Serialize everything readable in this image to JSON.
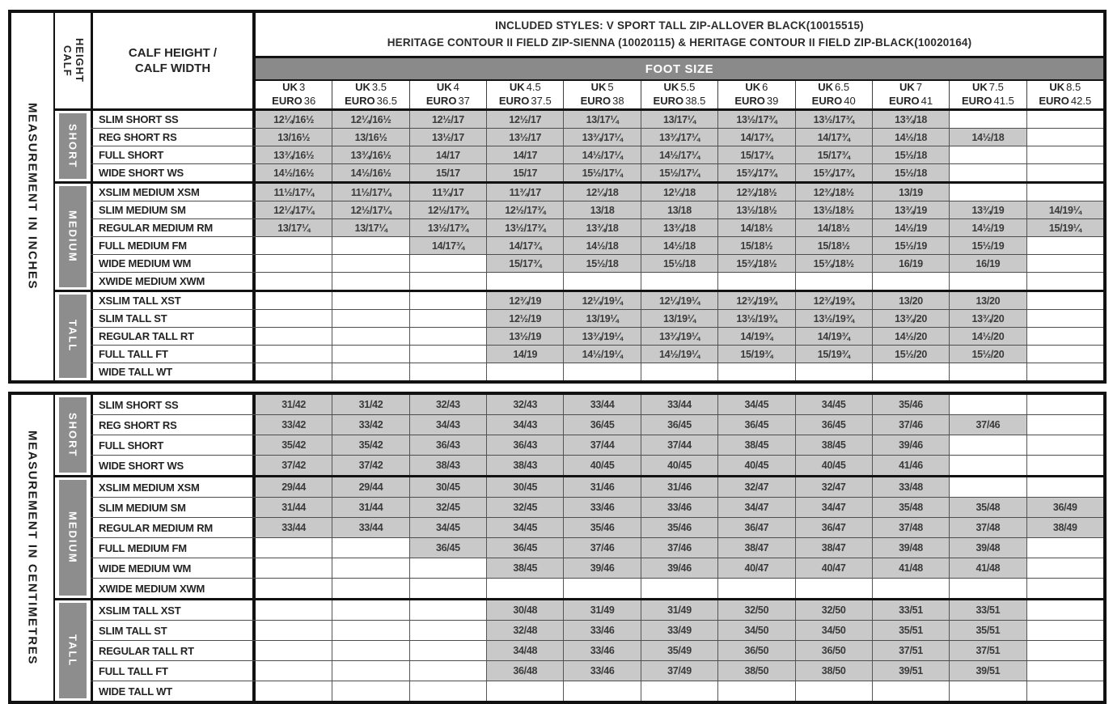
{
  "header": {
    "included_styles_line1": "INCLUDED STYLES: V SPORT TALL ZIP-ALLOVER BLACK(10015515)",
    "included_styles_line2": "HERITAGE CONTOUR II FIELD ZIP-SIENNA (10020115) & HERITAGE CONTOUR II FIELD ZIP-BLACK(10020164)",
    "foot_size_label": "FOOT SIZE",
    "calf_height_vertical_label": "CALF HEIGHT",
    "calf_header_label": "CALF HEIGHT / CALF WIDTH",
    "size_columns": [
      {
        "uk_label": "UK",
        "uk_value": "3",
        "euro_label": "EURO",
        "euro_value": "36"
      },
      {
        "uk_label": "UK",
        "uk_value": "3.5",
        "euro_label": "EURO",
        "euro_value": "36.5"
      },
      {
        "uk_label": "UK",
        "uk_value": "4",
        "euro_label": "EURO",
        "euro_value": "37"
      },
      {
        "uk_label": "UK",
        "uk_value": "4.5",
        "euro_label": "EURO",
        "euro_value": "37.5"
      },
      {
        "uk_label": "UK",
        "uk_value": "5",
        "euro_label": "EURO",
        "euro_value": "38"
      },
      {
        "uk_label": "UK",
        "uk_value": "5.5",
        "euro_label": "EURO",
        "euro_value": "38.5"
      },
      {
        "uk_label": "UK",
        "uk_value": "6",
        "euro_label": "EURO",
        "euro_value": "39"
      },
      {
        "uk_label": "UK",
        "uk_value": "6.5",
        "euro_label": "EURO",
        "euro_value": "40"
      },
      {
        "uk_label": "UK",
        "uk_value": "7",
        "euro_label": "EURO",
        "euro_value": "41"
      },
      {
        "uk_label": "UK",
        "uk_value": "7.5",
        "euro_label": "EURO",
        "euro_value": "41.5"
      },
      {
        "uk_label": "UK",
        "uk_value": "8.5",
        "euro_label": "EURO",
        "euro_value": "42.5"
      }
    ]
  },
  "colors": {
    "foot_size_bar": "#8a8a8a",
    "group_label_box": "#8d8d8d",
    "filled_cell": "#c9c9c9",
    "border": "#121212",
    "text": "#3a3a3a"
  },
  "tables": [
    {
      "id": "inches",
      "side_label": "MEASUREMENT IN INCHES",
      "groups": [
        {
          "label": "SHORT",
          "rows": [
            {
              "label": "SLIM SHORT SS",
              "cells": [
                "12¼/16½",
                "12¼/16½",
                "12½/17",
                "12½/17",
                "13/17¼",
                "13/17¼",
                "13½/17¾",
                "13½/17¾",
                "13¾/18",
                "",
                ""
              ]
            },
            {
              "label": "REG SHORT RS",
              "cells": [
                "13/16½",
                "13/16½",
                "13½/17",
                "13½/17",
                "13¾/17¼",
                "13¾/17¼",
                "14/17¾",
                "14/17¾",
                "14½/18",
                "14½/18",
                ""
              ]
            },
            {
              "label": "FULL SHORT",
              "cells": [
                "13¾/16½",
                "13¾/16½",
                "14/17",
                "14/17",
                "14½/17¼",
                "14½/17¼",
                "15/17¾",
                "15/17¾",
                "15½/18",
                "",
                ""
              ]
            },
            {
              "label": "WIDE SHORT WS",
              "cells": [
                "14½/16½",
                "14½/16½",
                "15/17",
                "15/17",
                "15½/17¼",
                "15½/17¼",
                "15¾/17¾",
                "15¾/17¾",
                "15½/18",
                "",
                ""
              ]
            }
          ]
        },
        {
          "label": "MEDIUM",
          "rows": [
            {
              "label": "XSLIM MEDIUM XSM",
              "cells": [
                "11½/17¼",
                "11½/17¼",
                "11¾/17",
                "11¾/17",
                "12¼/18",
                "12¼/18",
                "12¾/18½",
                "12¾/18½",
                "13/19",
                "",
                ""
              ]
            },
            {
              "label": "SLIM MEDIUM SM",
              "cells": [
                "12¼/17¼",
                "12½/17¼",
                "12½/17¾",
                "12½/17¾",
                "13/18",
                "13/18",
                "13½/18½",
                "13½/18½",
                "13¾/19",
                "13¾/19",
                "14/19¼"
              ]
            },
            {
              "label": "REGULAR MEDIUM RM",
              "cells": [
                "13/17¼",
                "13/17¼",
                "13½/17¾",
                "13½/17¾",
                "13¾/18",
                "13¾/18",
                "14/18½",
                "14/18½",
                "14½/19",
                "14½/19",
                "15/19¼"
              ]
            },
            {
              "label": "FULL MEDIUM FM",
              "cells": [
                "",
                "",
                "14/17¾",
                "14/17¾",
                "14½/18",
                "14½/18",
                "15/18½",
                "15/18½",
                "15½/19",
                "15½/19",
                ""
              ]
            },
            {
              "label": "WIDE MEDIUM WM",
              "cells": [
                "",
                "",
                "",
                "15/17¾",
                "15½/18",
                "15½/18",
                "15¾/18½",
                "15¾/18½",
                "16/19",
                "16/19",
                ""
              ]
            },
            {
              "label": "XWIDE MEDIUM XWM",
              "cells": [
                "",
                "",
                "",
                "",
                "",
                "",
                "",
                "",
                "",
                "",
                ""
              ]
            }
          ]
        },
        {
          "label": "TALL",
          "rows": [
            {
              "label": "XSLIM TALL XST",
              "cells": [
                "",
                "",
                "",
                "12¾/19",
                "12¼/19¼",
                "12¼/19¼",
                "12¾/19¾",
                "12¾/19¾",
                "13/20",
                "13/20",
                ""
              ]
            },
            {
              "label": "SLIM TALL ST",
              "cells": [
                "",
                "",
                "",
                "12½/19",
                "13/19¼",
                "13/19¼",
                "13½/19¾",
                "13½/19¾",
                "13¾/20",
                "13¾/20",
                ""
              ]
            },
            {
              "label": "REGULAR TALL RT",
              "cells": [
                "",
                "",
                "",
                "13½/19",
                "13¾/19¼",
                "13¾/19¼",
                "14/19¾",
                "14/19¾",
                "14½/20",
                "14½/20",
                ""
              ]
            },
            {
              "label": "FULL TALL FT",
              "cells": [
                "",
                "",
                "",
                "14/19",
                "14½/19¼",
                "14½/19¼",
                "15/19¾",
                "15/19¾",
                "15½/20",
                "15½/20",
                ""
              ]
            },
            {
              "label": "WIDE TALL WT",
              "cells": [
                "",
                "",
                "",
                "",
                "",
                "",
                "",
                "",
                "",
                "",
                ""
              ]
            }
          ]
        }
      ]
    },
    {
      "id": "centimetres",
      "side_label": "MEASUREMENT IN CENTIMETRES",
      "groups": [
        {
          "label": "SHORT",
          "rows": [
            {
              "label": "SLIM SHORT SS",
              "cells": [
                "31/42",
                "31/42",
                "32/43",
                "32/43",
                "33/44",
                "33/44",
                "34/45",
                "34/45",
                "35/46",
                "",
                ""
              ]
            },
            {
              "label": "REG SHORT RS",
              "cells": [
                "33/42",
                "33/42",
                "34/43",
                "34/43",
                "36/45",
                "36/45",
                "36/45",
                "36/45",
                "37/46",
                "37/46",
                ""
              ]
            },
            {
              "label": "FULL SHORT",
              "cells": [
                "35/42",
                "35/42",
                "36/43",
                "36/43",
                "37/44",
                "37/44",
                "38/45",
                "38/45",
                "39/46",
                "",
                ""
              ]
            },
            {
              "label": "WIDE SHORT WS",
              "cells": [
                "37/42",
                "37/42",
                "38/43",
                "38/43",
                "40/45",
                "40/45",
                "40/45",
                "40/45",
                "41/46",
                "",
                ""
              ]
            }
          ]
        },
        {
          "label": "MEDIUM",
          "rows": [
            {
              "label": "XSLIM MEDIUM XSM",
              "cells": [
                "29/44",
                "29/44",
                "30/45",
                "30/45",
                "31/46",
                "31/46",
                "32/47",
                "32/47",
                "33/48",
                "",
                ""
              ]
            },
            {
              "label": "SLIM MEDIUM SM",
              "cells": [
                "31/44",
                "31/44",
                "32/45",
                "32/45",
                "33/46",
                "33/46",
                "34/47",
                "34/47",
                "35/48",
                "35/48",
                "36/49"
              ]
            },
            {
              "label": "REGULAR MEDIUM RM",
              "cells": [
                "33/44",
                "33/44",
                "34/45",
                "34/45",
                "35/46",
                "35/46",
                "36/47",
                "36/47",
                "37/48",
                "37/48",
                "38/49"
              ]
            },
            {
              "label": "FULL MEDIUM FM",
              "cells": [
                "",
                "",
                "36/45",
                "36/45",
                "37/46",
                "37/46",
                "38/47",
                "38/47",
                "39/48",
                "39/48",
                ""
              ]
            },
            {
              "label": "WIDE MEDIUM WM",
              "cells": [
                "",
                "",
                "",
                "38/45",
                "39/46",
                "39/46",
                "40/47",
                "40/47",
                "41/48",
                "41/48",
                ""
              ]
            },
            {
              "label": "XWIDE MEDIUM XWM",
              "cells": [
                "",
                "",
                "",
                "",
                "",
                "",
                "",
                "",
                "",
                "",
                ""
              ]
            }
          ]
        },
        {
          "label": "TALL",
          "rows": [
            {
              "label": "XSLIM TALL XST",
              "cells": [
                "",
                "",
                "",
                "30/48",
                "31/49",
                "31/49",
                "32/50",
                "32/50",
                "33/51",
                "33/51",
                ""
              ]
            },
            {
              "label": "SLIM TALL ST",
              "cells": [
                "",
                "",
                "",
                "32/48",
                "33/46",
                "33/49",
                "34/50",
                "34/50",
                "35/51",
                "35/51",
                ""
              ]
            },
            {
              "label": "REGULAR TALL RT",
              "cells": [
                "",
                "",
                "",
                "34/48",
                "33/46",
                "35/49",
                "36/50",
                "36/50",
                "37/51",
                "37/51",
                ""
              ]
            },
            {
              "label": "FULL TALL FT",
              "cells": [
                "",
                "",
                "",
                "36/48",
                "33/46",
                "37/49",
                "38/50",
                "38/50",
                "39/51",
                "39/51",
                ""
              ]
            },
            {
              "label": "WIDE TALL WT",
              "cells": [
                "",
                "",
                "",
                "",
                "",
                "",
                "",
                "",
                "",
                "",
                ""
              ]
            }
          ]
        }
      ]
    }
  ]
}
